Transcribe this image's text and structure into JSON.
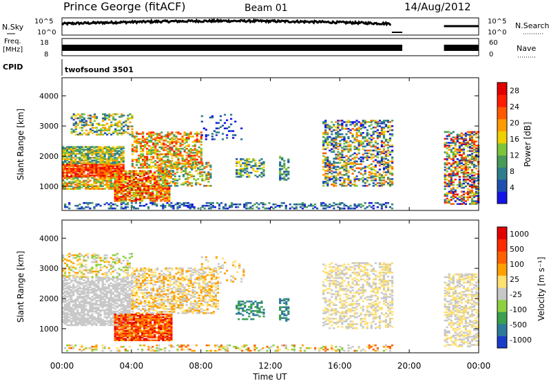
{
  "header": {
    "station": "Prince George (fitACF)",
    "beam": "Beam 01",
    "date": "14/Aug/2012"
  },
  "noise_panel": {
    "left_label": "N.Sky",
    "right_label": "N.Search",
    "left_ticks": [
      "10^5",
      "10^0"
    ],
    "right_ticks": [
      "10^5",
      "10^0"
    ]
  },
  "freq_panel": {
    "left_label_1": "Freq.",
    "left_label_2": "[MHz]",
    "right_label": "Nave",
    "left_ticks": [
      "18",
      "8"
    ],
    "right_ticks": [
      "60",
      "0"
    ]
  },
  "cpid_panel": {
    "label": "CPID",
    "value": "twofsound 3501"
  },
  "colors": {
    "power_scale": [
      "#1414e6",
      "#1f4fb0",
      "#2e7d8c",
      "#4a9a5a",
      "#7ec43a",
      "#f0d000",
      "#ff9a00",
      "#ff5a00",
      "#ff1e00",
      "#e00000"
    ],
    "velocity_scale": [
      "#1a3cc8",
      "#2f7a9a",
      "#3aa050",
      "#8ed040",
      "#c8c8c8",
      "#ffe070",
      "#ffa000",
      "#ff6000",
      "#ff2a00",
      "#e00000"
    ]
  },
  "chart_data": [
    {
      "type": "heatmap",
      "name": "power",
      "ylabel": "Slant Range [km]",
      "yticks": [
        "1000",
        "2000",
        "3000",
        "4000"
      ],
      "ylim": [
        200,
        4600
      ],
      "colorbar_label": "Power [dB]",
      "colorbar_ticks": [
        "4",
        "8",
        "12",
        "16",
        "20",
        "24",
        "28"
      ],
      "colorbar_range": [
        0,
        30
      ]
    },
    {
      "type": "heatmap",
      "name": "velocity",
      "ylabel": "Slant Range [km]",
      "yticks": [
        "1000",
        "2000",
        "3000",
        "4000"
      ],
      "ylim": [
        200,
        4600
      ],
      "colorbar_label": "Velocity [m s⁻¹]",
      "colorbar_ticks": [
        "1000",
        "500",
        "100",
        "25",
        "-25",
        "-100",
        "-500",
        "-1000"
      ]
    }
  ],
  "time_axis": {
    "label": "Time UT",
    "ticks": [
      "00:00",
      "04:00",
      "08:00",
      "12:00",
      "16:00",
      "20:00",
      "00:00"
    ],
    "range_hours": [
      0,
      24
    ]
  }
}
